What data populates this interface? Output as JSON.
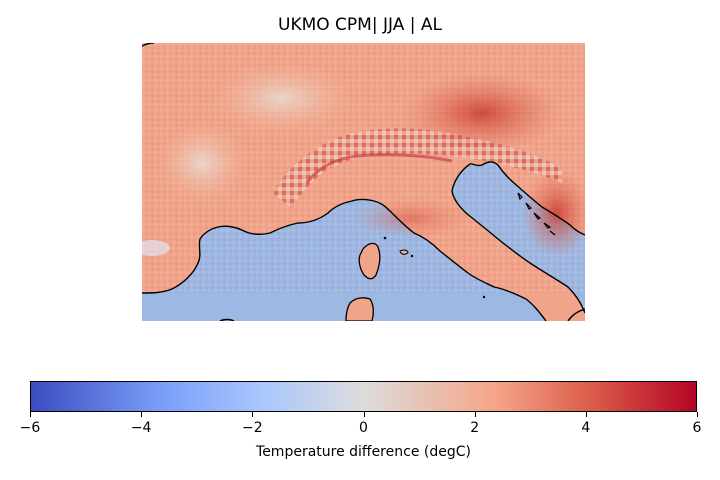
{
  "title": "UKMO CPM| JJA | AL",
  "colorbar": {
    "label": "Temperature difference (degC)",
    "ticks": [
      "−6",
      "−4",
      "−2",
      "0",
      "2",
      "4",
      "6"
    ],
    "range": [
      -6,
      6
    ],
    "colormap": "coolwarm",
    "colors": {
      "min": "#3b4cc0",
      "low": "#7b9ff9",
      "mid_low": "#aac7fd",
      "center": "#dddcdc",
      "mid_high": "#f5a486",
      "high": "#d95847",
      "max": "#b40426"
    }
  },
  "map": {
    "region": "Alps / Northern Italy",
    "sea_color": "#9db9e3",
    "coastline_color": "#000000"
  }
}
